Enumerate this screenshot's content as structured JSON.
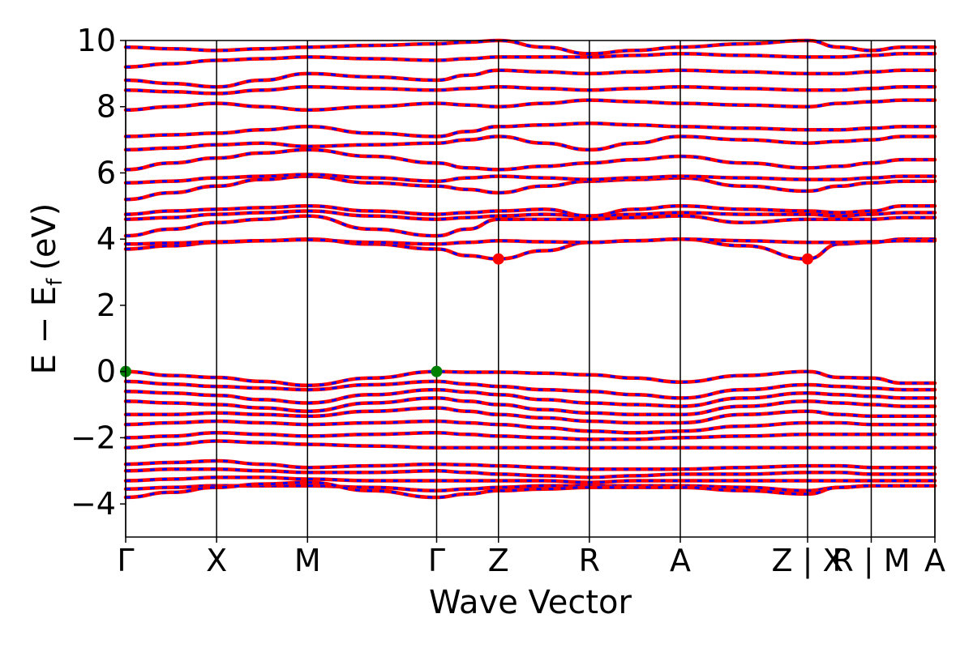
{
  "chart_data": {
    "type": "line",
    "title": "",
    "xlabel": "Wave Vector",
    "ylabel": "E − E_f (eV)",
    "ylabel_parts": {
      "main": "E − E",
      "sub": "f",
      "unit": "(eV)"
    },
    "ylim": [
      -5,
      10
    ],
    "y_ticks": [
      -4,
      -2,
      0,
      2,
      4,
      6,
      8,
      10
    ],
    "y_tick_labels": [
      "−4",
      "−2",
      "0",
      "2",
      "4",
      "6",
      "8",
      "10"
    ],
    "x_range": [
      0,
      8.9
    ],
    "kpoint_dividers": [
      0,
      1.0,
      2.0,
      3.42,
      4.1,
      5.1,
      6.1,
      7.5,
      8.2,
      8.9
    ],
    "kpoint_labels": [
      {
        "x": 0,
        "label": "Γ"
      },
      {
        "x": 1.0,
        "label": "X"
      },
      {
        "x": 2.0,
        "label": "M"
      },
      {
        "x": 3.42,
        "label": "Γ"
      },
      {
        "x": 4.1,
        "label": "Z"
      },
      {
        "x": 5.1,
        "label": "R"
      },
      {
        "x": 6.1,
        "label": "A"
      },
      {
        "x": 7.5,
        "label": "Z | X"
      },
      {
        "x": 8.2,
        "label": "R | M"
      },
      {
        "x": 8.9,
        "label": "A"
      }
    ],
    "band_x": [
      0,
      0.5,
      1.0,
      1.5,
      2.0,
      2.7,
      3.42,
      3.76,
      4.1,
      4.6,
      5.1,
      5.6,
      6.1,
      6.8,
      7.5,
      7.85,
      8.2,
      8.55,
      8.9
    ],
    "valence_bands": [
      [
        0.0,
        -0.12,
        -0.18,
        -0.3,
        -0.42,
        -0.2,
        0.0,
        -0.02,
        -0.02,
        -0.05,
        -0.1,
        -0.2,
        -0.32,
        -0.12,
        0.0,
        -0.18,
        -0.2,
        -0.35,
        -0.35
      ],
      [
        -0.3,
        -0.38,
        -0.45,
        -0.5,
        -0.55,
        -0.4,
        -0.3,
        -0.38,
        -0.45,
        -0.55,
        -0.6,
        -0.7,
        -0.8,
        -0.55,
        -0.4,
        -0.45,
        -0.5,
        -0.55,
        -0.55
      ],
      [
        -0.6,
        -0.65,
        -0.72,
        -0.85,
        -0.95,
        -0.7,
        -0.55,
        -0.62,
        -0.7,
        -0.85,
        -0.95,
        -1.0,
        -1.05,
        -0.8,
        -0.65,
        -0.7,
        -0.75,
        -0.8,
        -0.8
      ],
      [
        -0.9,
        -0.95,
        -1.0,
        -1.1,
        -1.2,
        -0.95,
        -0.8,
        -0.9,
        -1.0,
        -1.15,
        -1.25,
        -1.3,
        -1.3,
        -1.05,
        -0.9,
        -0.95,
        -1.0,
        -1.05,
        -1.05
      ],
      [
        -1.3,
        -1.3,
        -1.25,
        -1.3,
        -1.35,
        -1.2,
        -1.1,
        -1.2,
        -1.3,
        -1.4,
        -1.5,
        -1.55,
        -1.55,
        -1.3,
        -1.2,
        -1.3,
        -1.35,
        -1.35,
        -1.35
      ],
      [
        -1.6,
        -1.55,
        -1.5,
        -1.55,
        -1.6,
        -1.55,
        -1.5,
        -1.55,
        -1.6,
        -1.7,
        -1.8,
        -1.85,
        -1.8,
        -1.65,
        -1.55,
        -1.55,
        -1.6,
        -1.6,
        -1.6
      ],
      [
        -2.0,
        -1.95,
        -1.85,
        -1.9,
        -1.95,
        -1.9,
        -1.85,
        -1.9,
        -1.95,
        -2.0,
        -2.05,
        -2.05,
        -2.0,
        -1.95,
        -1.9,
        -1.9,
        -1.9,
        -1.9,
        -1.9
      ],
      [
        -2.3,
        -2.2,
        -2.1,
        -2.15,
        -2.2,
        -2.25,
        -2.3,
        -2.3,
        -2.3,
        -2.3,
        -2.3,
        -2.3,
        -2.3,
        -2.3,
        -2.3,
        -2.3,
        -2.3,
        -2.3,
        -2.3
      ],
      [
        -2.8,
        -2.75,
        -2.7,
        -2.8,
        -2.9,
        -2.85,
        -2.8,
        -2.82,
        -2.85,
        -2.9,
        -2.95,
        -2.95,
        -2.95,
        -2.9,
        -2.85,
        -2.85,
        -2.9,
        -2.9,
        -2.9
      ],
      [
        -3.0,
        -2.95,
        -2.95,
        -3.0,
        -3.05,
        -3.05,
        -3.0,
        -3.05,
        -3.1,
        -3.15,
        -3.2,
        -3.15,
        -3.1,
        -3.1,
        -3.05,
        -3.05,
        -3.1,
        -3.1,
        -3.1
      ],
      [
        -3.3,
        -3.25,
        -3.2,
        -3.2,
        -3.25,
        -3.3,
        -3.3,
        -3.3,
        -3.3,
        -3.3,
        -3.35,
        -3.3,
        -3.3,
        -3.3,
        -3.3,
        -3.3,
        -3.3,
        -3.3,
        -3.3
      ],
      [
        -3.55,
        -3.5,
        -3.45,
        -3.45,
        -3.45,
        -3.5,
        -3.6,
        -3.55,
        -3.5,
        -3.45,
        -3.45,
        -3.45,
        -3.45,
        -3.5,
        -3.6,
        -3.5,
        -3.45,
        -3.45,
        -3.45
      ],
      [
        -3.8,
        -3.65,
        -3.5,
        -3.4,
        -3.35,
        -3.6,
        -3.8,
        -3.7,
        -3.6,
        -3.55,
        -3.5,
        -3.5,
        -3.5,
        -3.6,
        -3.7,
        -3.5,
        -3.45,
        -3.45,
        -3.45
      ]
    ],
    "conduction_bands": [
      [
        3.7,
        3.8,
        3.9,
        3.95,
        4.0,
        3.85,
        3.7,
        3.5,
        3.4,
        3.65,
        3.9,
        3.95,
        4.0,
        3.8,
        3.4,
        3.85,
        3.9,
        4.0,
        4.0
      ],
      [
        3.85,
        3.88,
        3.92,
        3.95,
        3.98,
        3.9,
        3.85,
        3.9,
        3.95,
        3.92,
        3.9,
        3.95,
        4.0,
        3.95,
        3.9,
        3.9,
        3.92,
        3.95,
        3.95
      ],
      [
        4.1,
        4.3,
        4.5,
        4.6,
        4.7,
        4.3,
        4.1,
        4.3,
        4.6,
        4.6,
        4.6,
        4.65,
        4.7,
        4.5,
        4.6,
        4.6,
        4.6,
        4.65,
        4.65
      ],
      [
        4.6,
        4.65,
        4.75,
        4.8,
        4.85,
        4.7,
        4.6,
        4.65,
        4.7,
        4.75,
        4.7,
        4.75,
        4.8,
        4.75,
        4.75,
        4.7,
        4.75,
        4.8,
        4.8
      ],
      [
        4.75,
        4.85,
        4.9,
        4.95,
        5.0,
        4.85,
        4.75,
        4.8,
        4.85,
        4.9,
        4.7,
        4.9,
        5.0,
        4.9,
        4.85,
        4.8,
        4.85,
        5.0,
        5.0
      ],
      [
        5.2,
        5.4,
        5.6,
        5.8,
        5.9,
        5.7,
        5.6,
        5.5,
        5.4,
        5.6,
        5.75,
        5.8,
        5.85,
        5.6,
        5.45,
        5.6,
        5.7,
        5.75,
        5.75
      ],
      [
        5.7,
        5.75,
        5.85,
        5.9,
        5.95,
        5.85,
        5.75,
        5.85,
        5.9,
        5.85,
        5.8,
        5.85,
        5.9,
        5.85,
        5.8,
        5.8,
        5.85,
        5.9,
        5.9
      ],
      [
        6.1,
        6.3,
        6.45,
        6.6,
        6.7,
        6.5,
        6.3,
        6.15,
        6.1,
        6.2,
        6.3,
        6.4,
        6.5,
        6.3,
        6.15,
        6.2,
        6.3,
        6.4,
        6.4
      ],
      [
        6.7,
        6.75,
        6.85,
        6.9,
        6.8,
        6.85,
        6.9,
        7.0,
        7.1,
        6.9,
        6.7,
        6.9,
        7.1,
        7.0,
        6.9,
        6.95,
        7.0,
        7.1,
        7.1
      ],
      [
        7.1,
        7.15,
        7.2,
        7.3,
        7.4,
        7.2,
        7.1,
        7.25,
        7.4,
        7.45,
        7.5,
        7.45,
        7.4,
        7.35,
        7.3,
        7.3,
        7.35,
        7.4,
        7.4
      ],
      [
        7.9,
        8.0,
        8.1,
        8.0,
        7.9,
        8.0,
        8.1,
        8.05,
        8.0,
        8.1,
        8.2,
        8.15,
        8.1,
        8.05,
        8.0,
        8.1,
        8.15,
        8.2,
        8.2
      ],
      [
        8.5,
        8.45,
        8.4,
        8.5,
        8.6,
        8.55,
        8.5,
        8.55,
        8.6,
        8.55,
        8.5,
        8.55,
        8.6,
        8.55,
        8.5,
        8.5,
        8.55,
        8.6,
        8.6
      ],
      [
        8.8,
        8.7,
        8.6,
        8.8,
        9.0,
        8.9,
        8.8,
        8.95,
        9.1,
        9.05,
        9.0,
        9.05,
        9.1,
        9.05,
        9.0,
        9.0,
        9.05,
        9.1,
        9.1
      ],
      [
        9.2,
        9.3,
        9.4,
        9.45,
        9.5,
        9.45,
        9.4,
        9.45,
        9.5,
        9.5,
        9.5,
        9.55,
        9.6,
        9.55,
        9.5,
        9.5,
        9.55,
        9.6,
        9.6
      ],
      [
        9.8,
        9.75,
        9.7,
        9.75,
        9.8,
        9.85,
        9.9,
        9.95,
        10.0,
        9.8,
        9.6,
        9.7,
        9.8,
        9.9,
        10.0,
        9.8,
        9.7,
        9.8,
        9.8
      ]
    ],
    "vbm_markers": [
      {
        "x": 0,
        "y": 0.0
      },
      {
        "x": 3.42,
        "y": 0.0
      }
    ],
    "cbm_markers": [
      {
        "x": 4.1,
        "y": 3.4
      },
      {
        "x": 7.5,
        "y": 3.4
      }
    ],
    "colors": {
      "band_primary": "#ff0000",
      "band_secondary": "#0000ff",
      "vbm_marker": "#008000",
      "cbm_marker": "#ff0000",
      "axes": "#000000"
    },
    "grid": false,
    "legend": "none"
  }
}
